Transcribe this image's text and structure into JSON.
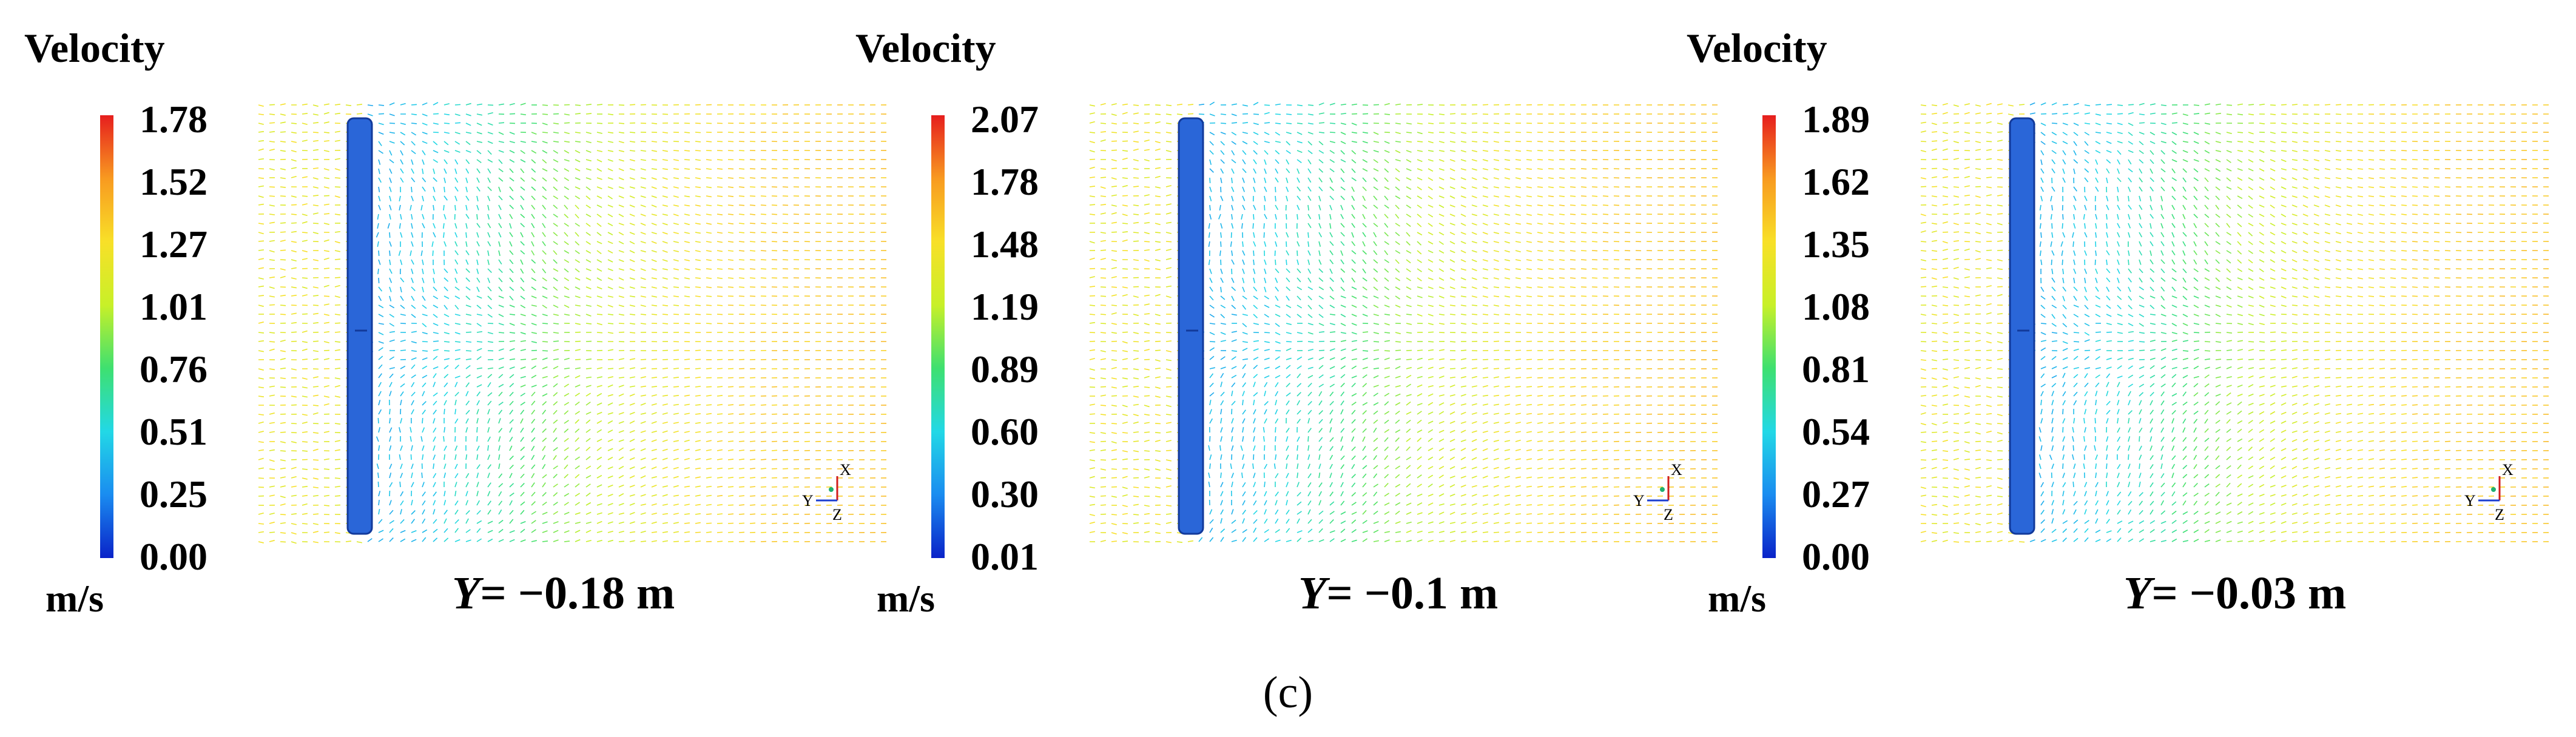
{
  "chart_data": [
    {
      "type": "vector-field",
      "legend_title": "Velocity",
      "unit": "m/s",
      "colorbar_ticks": [
        "1.78",
        "1.52",
        "1.27",
        "1.01",
        "0.76",
        "0.51",
        "0.25",
        "0.00"
      ],
      "range": [
        0.0,
        1.78
      ],
      "caption_var": "Y",
      "caption_value": "= −0.18 m",
      "axis_labels": {
        "x": "X",
        "y": "Y",
        "z": "Z"
      }
    },
    {
      "type": "vector-field",
      "legend_title": "Velocity",
      "unit": "m/s",
      "colorbar_ticks": [
        "2.07",
        "1.78",
        "1.48",
        "1.19",
        "0.89",
        "0.60",
        "0.30",
        "0.01"
      ],
      "range": [
        0.01,
        2.07
      ],
      "caption_var": "Y",
      "caption_value": "= −0.1 m",
      "axis_labels": {
        "x": "X",
        "y": "Y",
        "z": "Z"
      }
    },
    {
      "type": "vector-field",
      "legend_title": "Velocity",
      "unit": "m/s",
      "colorbar_ticks": [
        "1.89",
        "1.62",
        "1.35",
        "1.08",
        "0.81",
        "0.54",
        "0.27",
        "0.00"
      ],
      "range": [
        0.0,
        1.89
      ],
      "caption_var": "Y",
      "caption_value": "= −0.03 m",
      "axis_labels": {
        "x": "X",
        "y": "Y",
        "z": "Z"
      }
    }
  ],
  "figure_label": "(c)",
  "colormap": [
    "#0a22c8",
    "#1a8cf0",
    "#22d8e6",
    "#3ee070",
    "#c8f028",
    "#f8e028",
    "#f89a20",
    "#e61e1e"
  ]
}
